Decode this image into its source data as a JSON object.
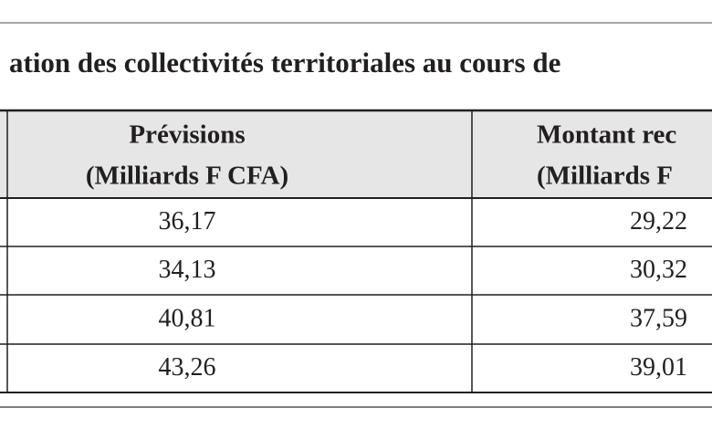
{
  "title": "ation des collectivités territoriales au cours de",
  "table": {
    "header": [
      {
        "lines": [
          "Prévisions",
          "(Milliards F CFA)"
        ]
      },
      {
        "lines": [
          "Montant rec",
          "(Milliards F"
        ]
      }
    ],
    "rows": [
      [
        "36,17",
        "29,22"
      ],
      [
        "34,13",
        "30,32"
      ],
      [
        "40,81",
        "37,59"
      ],
      [
        "43,26",
        "39,01"
      ]
    ]
  }
}
